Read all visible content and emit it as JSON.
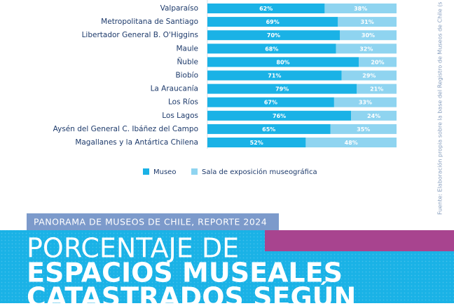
{
  "chart_data": {
    "type": "stacked-bar-horizontal",
    "categories": [
      "Valparaíso",
      "Metropolitana de Santiago",
      "Libertador General B. O'Higgins",
      "Maule",
      "Ñuble",
      "Biobío",
      "La Araucanía",
      "Los Ríos",
      "Los Lagos",
      "Aysén del General C. Ibáñez del Campo",
      "Magallanes y la Antártica Chilena"
    ],
    "series": [
      {
        "name": "Museo",
        "color": "#1ab2e6",
        "values": [
          62,
          69,
          70,
          68,
          80,
          71,
          79,
          67,
          76,
          65,
          52
        ],
        "value_labels": [
          "62%",
          "69%",
          "70%",
          "68%",
          "80%",
          "71%",
          "79%",
          "67%",
          "76%",
          "65%",
          "52%"
        ]
      },
      {
        "name": "Sala de exposición museográfica",
        "color": "#8fd4f0",
        "values": [
          38,
          31,
          30,
          32,
          20,
          29,
          21,
          33,
          24,
          35,
          48
        ],
        "value_labels": [
          "38%",
          "31%",
          "30%",
          "32%",
          "20%",
          "29%",
          "21%",
          "33%",
          "24%",
          "35%",
          "48%"
        ]
      }
    ],
    "xlim": [
      0,
      100
    ],
    "source": "Fuente: Elaboración propia sobre la base del Registro de Museos de Chile (s de ab"
  },
  "header": {
    "kicker": "PANORAMA DE MUSEOS DE CHILE, REPORTE 2024",
    "title_lines": [
      "PORCENTAJE DE",
      "ESPACIOS MUSEALES",
      "CATASTRADOS SEGÚN"
    ]
  }
}
